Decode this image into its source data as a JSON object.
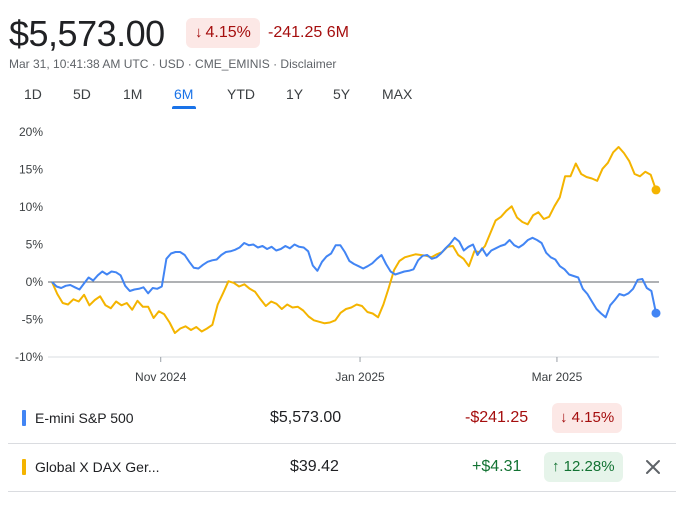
{
  "quote": {
    "price": "$5,573.00",
    "change_pct": "4.15%",
    "change_pct_arrow": "down-arrow-icon",
    "change_abs": "-241.25 6M",
    "meta": "Mar 31, 10:41:38 AM UTC · USD · CME_EMINIS · Disclaimer"
  },
  "ranges": [
    "1D",
    "5D",
    "1M",
    "6M",
    "YTD",
    "1Y",
    "5Y",
    "MAX"
  ],
  "selected_range": "6M",
  "chart_data": {
    "type": "line",
    "y_ticks": [
      "20%",
      "15%",
      "10%",
      "5%",
      "0%",
      "-5%",
      "-10%"
    ],
    "ylim": [
      -10,
      20
    ],
    "x_ticks": [
      {
        "label": "Nov 2024",
        "t": 0.18
      },
      {
        "label": "Jan 2025",
        "t": 0.51
      },
      {
        "label": "Mar 2025",
        "t": 0.836
      }
    ],
    "series": [
      {
        "name": "E-mini S&P 500",
        "color": "#4285f4",
        "values": [
          0.0,
          -0.6,
          -0.8,
          -0.5,
          -0.4,
          -0.7,
          -1.0,
          -0.2,
          0.6,
          0.2,
          0.9,
          1.4,
          1.0,
          1.4,
          1.3,
          0.9,
          -0.5,
          -1.2,
          -1.0,
          -0.9,
          -0.7,
          -1.5,
          -0.8,
          -0.9,
          -0.6,
          3.1,
          3.8,
          4.0,
          4.0,
          3.6,
          2.7,
          1.9,
          1.8,
          2.3,
          2.7,
          2.9,
          3.0,
          3.6,
          4.0,
          4.1,
          4.3,
          4.6,
          5.2,
          4.9,
          5.0,
          4.6,
          4.8,
          4.4,
          4.7,
          4.2,
          4.4,
          4.8,
          4.5,
          5.0,
          4.7,
          4.6,
          4.1,
          2.2,
          1.5,
          2.7,
          3.4,
          3.8,
          4.9,
          4.9,
          4.0,
          2.8,
          2.4,
          2.1,
          1.8,
          2.1,
          2.5,
          3.1,
          3.6,
          2.4,
          1.4,
          1.0,
          1.2,
          1.4,
          1.5,
          1.7,
          2.9,
          3.5,
          3.6,
          3.1,
          3.3,
          3.8,
          4.5,
          5.1,
          5.9,
          5.4,
          4.2,
          4.7,
          5.0,
          3.6,
          4.5,
          3.5,
          4.2,
          4.5,
          4.8,
          5.0,
          5.6,
          4.9,
          4.6,
          5.0,
          5.6,
          5.9,
          5.6,
          5.2,
          3.9,
          3.3,
          3.0,
          2.1,
          1.7,
          1.0,
          0.8,
          0.6,
          -0.9,
          -1.6,
          -2.6,
          -3.6,
          -4.2,
          -4.7,
          -3.1,
          -2.4,
          -1.6,
          -1.8,
          -1.5,
          -0.9,
          0.3,
          0.4,
          -0.8,
          -1.2,
          -4.15
        ]
      },
      {
        "name": "Global X DAX Ger...",
        "color": "#f4b400",
        "values": [
          0.0,
          -1.6,
          -2.8,
          -3.0,
          -2.3,
          -2.6,
          -1.7,
          -3.1,
          -2.4,
          -1.9,
          -3.1,
          -3.5,
          -2.6,
          -3.1,
          -2.8,
          -3.7,
          -2.5,
          -3.3,
          -3.3,
          -4.8,
          -3.9,
          -4.3,
          -5.4,
          -6.8,
          -6.2,
          -5.9,
          -6.4,
          -6.0,
          -6.6,
          -6.2,
          -5.7,
          -3.0,
          -1.5,
          0.1,
          -0.1,
          -0.6,
          -0.3,
          -0.9,
          -1.3,
          -2.3,
          -3.2,
          -2.6,
          -2.9,
          -3.6,
          -3.0,
          -3.4,
          -3.3,
          -3.8,
          -4.6,
          -5.1,
          -5.3,
          -5.5,
          -5.4,
          -5.1,
          -4.1,
          -3.6,
          -3.4,
          -3.0,
          -3.2,
          -4.0,
          -4.2,
          -4.7,
          -3.0,
          -0.8,
          1.6,
          2.8,
          3.3,
          3.5,
          3.7,
          3.6,
          3.5,
          3.3,
          3.7,
          4.0,
          4.7,
          4.8,
          3.6,
          3.1,
          2.1,
          4.1,
          4.0,
          4.8,
          6.5,
          8.2,
          8.7,
          9.5,
          10.1,
          8.6,
          8.0,
          7.7,
          8.9,
          9.3,
          8.4,
          8.7,
          10.1,
          11.3,
          14.1,
          14.1,
          15.8,
          14.4,
          14.0,
          13.8,
          13.5,
          15.1,
          15.9,
          17.3,
          18.0,
          17.2,
          16.1,
          14.4,
          14.1,
          14.7,
          14.3,
          12.28
        ]
      }
    ],
    "baseline": 0
  },
  "legend_rows": [
    {
      "name": "E-mini S&P 500",
      "color": "#4285f4",
      "value": "$5,573.00",
      "change": "-$241.25",
      "change_color": "#a50e0e",
      "pct": "4.15%",
      "pct_arrow": "↓",
      "badge_bg": "#fce8e6",
      "badge_color": "#a50e0e"
    },
    {
      "name": "Global X DAX Ger...",
      "color": "#f4b400",
      "value": "$39.42",
      "change": "+$4.31",
      "change_color": "#137333",
      "pct": "12.28%",
      "pct_arrow": "↑",
      "badge_bg": "#e6f4ea",
      "badge_color": "#137333"
    }
  ]
}
